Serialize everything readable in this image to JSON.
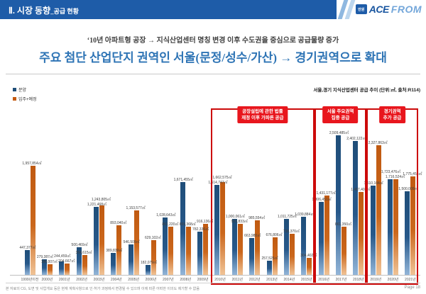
{
  "header": {
    "title_main": "Ⅱ. 시장 동향",
    "title_sub": "_공급 현황",
    "brand_prefix": "안원",
    "brand_main": "ACE",
    "brand_suffix": "FROM"
  },
  "headline": {
    "line1": "‘10년 아파트형 공장 → 지식산업센터 명칭 변경 이후 수도권을 중심으로 공급물량 증가",
    "line2": "주요 첨단 산업단지 권역인 서울(문정/성수/가산) → 경기권역으로 확대"
  },
  "chart_data": {
    "type": "bar",
    "title": "서울,경기 지식산업센터 공급 추이 (단위:㎡, 출처:R114)",
    "unit": "㎡",
    "legend_position": "top-left",
    "grid": false,
    "ylim": [
      0,
      2600000
    ],
    "categories": [
      "1999년이전",
      "2000년",
      "2001년",
      "2002년",
      "2003년",
      "2004년",
      "2005년",
      "2006년",
      "2007년",
      "2008년",
      "2009년",
      "2010년",
      "2011년",
      "2012년",
      "2013년",
      "2014년",
      "2015년",
      "2016년",
      "2017년",
      "2018년",
      "2019년",
      "2020년",
      "2021년"
    ],
    "series": [
      {
        "name": "분양",
        "color": "#1F4E79",
        "values": [
          447377,
          279387,
          244459,
          500469,
          1221468,
          389839,
          546509,
          182079,
          1028643,
          1671455,
          782336,
          1614747,
          1000061,
          663980,
          257525,
          1011725,
          1039884,
          1306451,
          2509485,
          2402122,
          1610104,
          1723476,
          1500009
        ]
      },
      {
        "name": "입주+예정",
        "color": "#C55A11",
        "values": [
          1957854,
          186007,
          204667,
          354615,
          1243805,
          893040,
          1153577,
          629102,
          861220,
          869368,
          916136,
          1662575,
          921833,
          985554,
          676806,
          738370,
          304402,
          1431177,
          861350,
          1487401,
          2327863,
          1716524,
          1775455
        ]
      }
    ],
    "annotations": [
      {
        "lines": [
          "공장설립에 관한 법률",
          "재정 이후 가파른 공급"
        ],
        "from": "2010년",
        "to": "2015년"
      },
      {
        "lines": [
          "서울 주요권역",
          "집중 공급"
        ],
        "from": "2016년",
        "to": "2018년"
      },
      {
        "lines": [
          "경기권역",
          "추가 공급"
        ],
        "from": "2019년",
        "to": "2021년"
      }
    ],
    "accent_colors": {
      "highlight_border": "#CC0A0A",
      "annotation_bg": "#E8161D"
    }
  },
  "footer": {
    "disclaimer": "본 자료의 CG, 도면 및 사업개요 등은 현재 계획사항으로 인·허가 과정에서 변경될 수 있으며 이에 따른 어떠한 이의도 제기할 수 없음",
    "page": "Page 18"
  }
}
